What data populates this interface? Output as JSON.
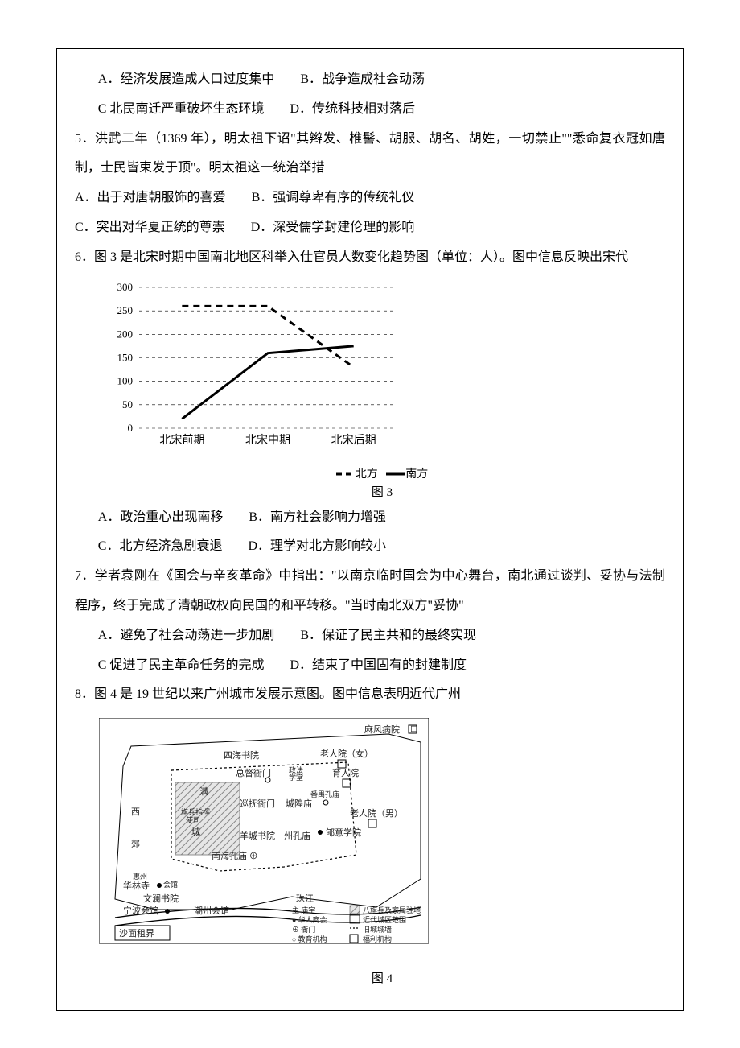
{
  "q4_tail": {
    "A": "A．经济发展造成人口过度集中",
    "B": "B．战争造成社会动荡",
    "C": "C 北民南迁严重破坏生态环境",
    "D": "D．传统科技相对落后"
  },
  "q5": {
    "stem": "5．洪武二年（1369 年），明太祖下诏\"其辫发、椎髻、胡服、胡名、胡姓，一切禁止\"\"悉命复衣冠如唐制，士民皆束发于顶\"。明太祖这一统治举措",
    "A": "A．出于对唐朝服饰的喜爱",
    "B": "B．强调尊卑有序的传统礼仪",
    "C": "C．突出对华夏正统的尊崇",
    "D": "D．深受儒学封建伦理的影响"
  },
  "q6": {
    "stem": "6．图 3 是北宋时期中国南北地区科举入仕官员人数变化趋势图（单位：人）。图中信息反映出宋代",
    "caption": "图 3",
    "A": "A．政治重心出现南移",
    "B": "B．南方社会影响力增强",
    "C": "C．北方经济急剧衰退",
    "D": "D．理学对北方影响较小",
    "chart": {
      "type": "line",
      "x_categories": [
        "北宋前期",
        "北宋中期",
        "北宋后期"
      ],
      "series": [
        {
          "name": "北方",
          "style": "dash",
          "values": [
            260,
            260,
            130
          ],
          "color": "#000000"
        },
        {
          "name": "南方",
          "style": "solid",
          "values": [
            20,
            160,
            175
          ],
          "color": "#000000"
        }
      ],
      "ylim": [
        0,
        300
      ],
      "ytick_step": 50,
      "grid_color": "#000000",
      "background": "#ffffff",
      "legend_items": [
        "--北方",
        "—南方"
      ]
    }
  },
  "q7": {
    "stem": "7．学者袁刚在《国会与辛亥革命》中指出：\"以南京临时国会为中心舞台，南北通过谈判、妥协与法制程序，终于完成了清朝政权向民国的和平转移。\"当时南北双方\"妥协\"",
    "A": "A．避免了社会动荡进一步加剧",
    "B": "B．保证了民主共和的最终实现",
    "C": "C 促进了民主革命任务的完成",
    "D": "D．结束了中国固有的封建制度"
  },
  "q8": {
    "stem": "8．图 4 是 19 世纪以来广州城市发展示意图。图中信息表明近代广州",
    "caption": "图 4",
    "map": {
      "legend": [
        {
          "symbol": "主",
          "label": "庙宇"
        },
        {
          "symbol": "●",
          "label": "华人商会"
        },
        {
          "symbol": "⊕",
          "label": "衙门"
        },
        {
          "symbol": "○",
          "label": "教育机构"
        },
        {
          "symbol": "▨",
          "label": "八旗兵及家属驻地"
        },
        {
          "symbol": "□",
          "label": "近代城区范围"
        },
        {
          "symbol": "┅",
          "label": "旧城城墙"
        },
        {
          "symbol": "匚",
          "label": "福利机构"
        }
      ],
      "places": [
        "麻风病院",
        "四海书院",
        "老人院（女）",
        "总督衙门",
        "政法学堂",
        "育人院",
        "满",
        "旗兵指挥使司",
        "巡抚衙门",
        "城隍庙",
        "番禺孔庙",
        "老人院（男）",
        "西",
        "城",
        "羊城书院",
        "州孔庙",
        "郇意学院",
        "西郊",
        "郊",
        "南海孔庙 ⊕",
        "惠州会馆",
        "华林寺",
        "文澜书院",
        "宁波会馆",
        "潮州会馆",
        "珠江",
        "沙面租界"
      ]
    }
  }
}
